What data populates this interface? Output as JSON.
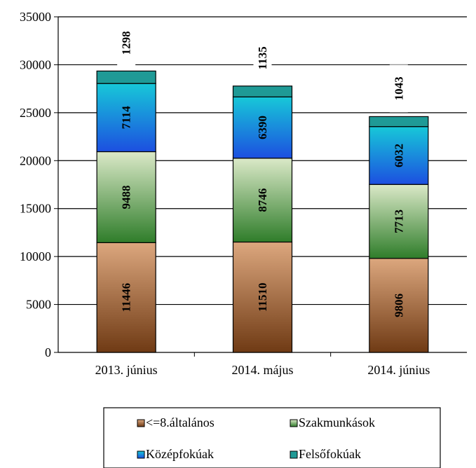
{
  "chart_data": {
    "type": "bar",
    "stacked": true,
    "categories": [
      "2013. június",
      "2014. május",
      "2014. június"
    ],
    "series": [
      {
        "name": "<=8.általános",
        "values": [
          11446,
          11510,
          9806
        ],
        "color_top": "#dca77e",
        "color_bottom": "#6f3a14"
      },
      {
        "name": "Szakmunkások",
        "values": [
          9488,
          8746,
          7713
        ],
        "color_top": "#dbe9c8",
        "color_bottom": "#2f7d2a"
      },
      {
        "name": "Középfokúak",
        "values": [
          7114,
          6390,
          6032
        ],
        "color_top": "#17c8d8",
        "color_bottom": "#1c4fe0"
      },
      {
        "name": "Felsőfokúak",
        "values": [
          1298,
          1135,
          1043
        ],
        "color_top": "#1f9a96",
        "color_bottom": "#1f9a96"
      }
    ],
    "ylim": [
      0,
      35000
    ],
    "yticks": [
      0,
      5000,
      10000,
      15000,
      20000,
      25000,
      30000,
      35000
    ],
    "grid": true,
    "legend_position": "bottom"
  }
}
